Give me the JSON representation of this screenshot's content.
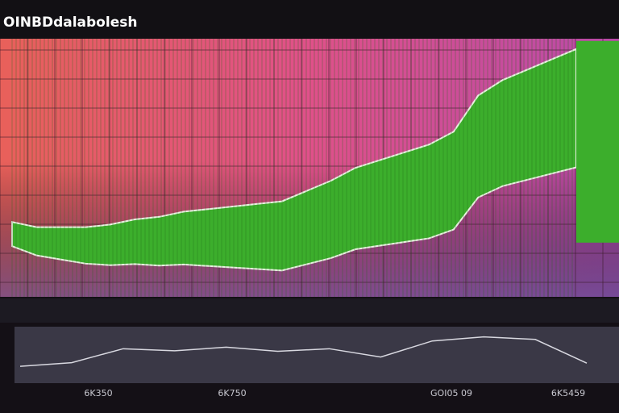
{
  "header": {
    "title": "OINBDdalabolesh"
  },
  "chart_data": [
    {
      "type": "area",
      "color": "#3cae2c",
      "categories": [
        null,
        null,
        null,
        null,
        null,
        null,
        null,
        null,
        null,
        null,
        null,
        null,
        null,
        null,
        null,
        null,
        null,
        null,
        null,
        null,
        null,
        null,
        null,
        null
      ],
      "values": [
        29,
        27,
        27,
        27,
        28,
        30,
        31,
        33,
        34,
        35,
        36,
        37,
        41,
        45,
        50,
        53,
        56,
        59,
        64,
        78,
        84,
        88,
        92,
        96
      ],
      "ylim": [
        0,
        100
      ],
      "grid": true
    },
    {
      "type": "line",
      "color": "#d8d8e0",
      "categories": [
        null,
        null,
        null,
        null,
        null,
        null,
        null,
        null,
        null,
        null,
        null,
        null
      ],
      "values": [
        28,
        35,
        62,
        58,
        65,
        57,
        62,
        46,
        77,
        85,
        80,
        34
      ],
      "ylim": [
        0,
        100
      ]
    }
  ],
  "footer": {
    "labels": [
      "6K350",
      "6K750",
      "GOI05 09",
      "6K5459"
    ]
  }
}
